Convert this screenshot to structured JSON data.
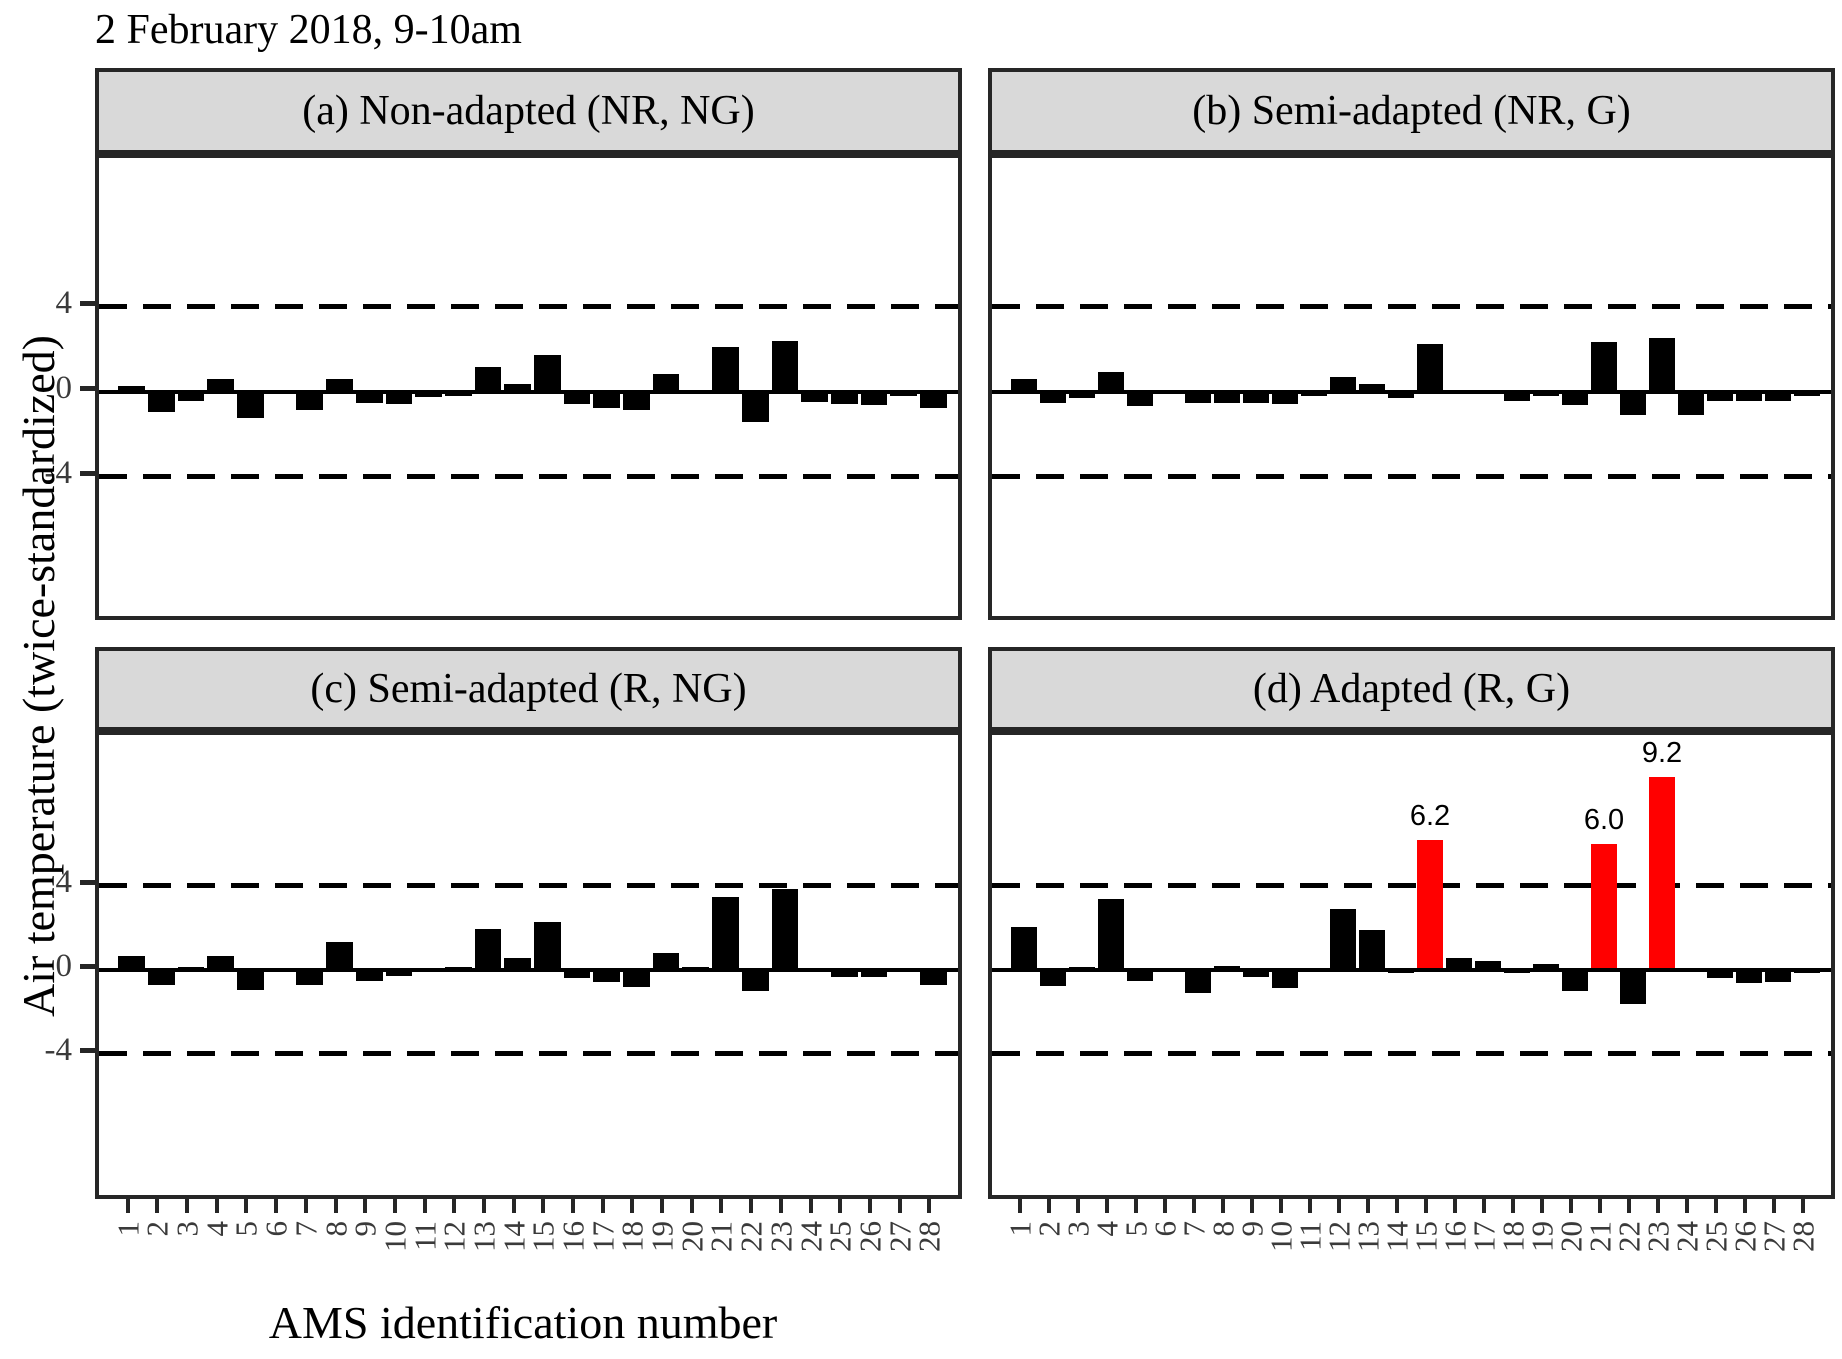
{
  "title": "2 February 2018, 9-10am",
  "axes": {
    "y_label": "Air temperature (twice-standardized)",
    "x_label": "AMS identification number",
    "y_ticks": [
      "4",
      "0",
      "-4"
    ],
    "x_ticks": [
      "1",
      "2",
      "3",
      "4",
      "5",
      "6",
      "7",
      "8",
      "9",
      "10",
      "11",
      "12",
      "13",
      "14",
      "15",
      "16",
      "17",
      "18",
      "19",
      "20",
      "21",
      "22",
      "23",
      "24",
      "25",
      "26",
      "27",
      "28"
    ]
  },
  "colors": {
    "bar": "#000000",
    "highlight": "#ff0000",
    "header_fill": "#d9d9d9",
    "panel_border": "#262626",
    "tick_text": "#3a3a3a"
  },
  "chart_data": [
    {
      "id": "a",
      "type": "bar",
      "title": "(a) Non-adapted (NR, NG)",
      "x": [
        1,
        2,
        3,
        4,
        5,
        6,
        7,
        8,
        9,
        10,
        11,
        12,
        13,
        14,
        15,
        16,
        17,
        18,
        19,
        20,
        21,
        22,
        23,
        24,
        25,
        26,
        27,
        28
      ],
      "values": [
        0.3,
        -0.95,
        -0.4,
        0.6,
        -1.2,
        -0.05,
        -0.85,
        0.6,
        -0.5,
        -0.55,
        -0.25,
        -0.2,
        1.2,
        0.4,
        1.75,
        -0.55,
        -0.75,
        -0.85,
        0.85,
        -0.05,
        2.1,
        -1.4,
        2.4,
        -0.45,
        -0.55,
        -0.6,
        -0.2,
        -0.75
      ],
      "ylim": [
        -11,
        11
      ],
      "yticks": [
        4,
        0,
        -4
      ],
      "reference_lines": {
        "dashed": [
          4,
          -4
        ],
        "solid": 0
      },
      "highlight_indices": [],
      "annotations": []
    },
    {
      "id": "b",
      "type": "bar",
      "title": "(b) Semi-adapted (NR, G)",
      "x": [
        1,
        2,
        3,
        4,
        5,
        6,
        7,
        8,
        9,
        10,
        11,
        12,
        13,
        14,
        15,
        16,
        17,
        18,
        19,
        20,
        21,
        22,
        23,
        24,
        25,
        26,
        27,
        28
      ],
      "values": [
        0.6,
        -0.5,
        -0.3,
        0.95,
        -0.65,
        -0.05,
        -0.5,
        -0.5,
        -0.5,
        -0.55,
        -0.2,
        0.7,
        0.4,
        -0.3,
        2.25,
        0.05,
        -0.05,
        -0.4,
        -0.2,
        -0.6,
        2.35,
        -1.1,
        2.55,
        -1.1,
        -0.4,
        -0.4,
        -0.4,
        -0.2
      ],
      "ylim": [
        -11,
        11
      ],
      "yticks": [
        4,
        0,
        -4
      ],
      "reference_lines": {
        "dashed": [
          4,
          -4
        ],
        "solid": 0
      },
      "highlight_indices": [],
      "annotations": []
    },
    {
      "id": "c",
      "type": "bar",
      "title": "(c) Semi-adapted (R, NG)",
      "x": [
        1,
        2,
        3,
        4,
        5,
        6,
        7,
        8,
        9,
        10,
        11,
        12,
        13,
        14,
        15,
        16,
        17,
        18,
        19,
        20,
        21,
        22,
        23,
        24,
        25,
        26,
        27,
        28
      ],
      "values": [
        0.65,
        -0.7,
        0.15,
        0.65,
        -0.95,
        -0.05,
        -0.7,
        1.35,
        -0.5,
        -0.3,
        -0.1,
        0.15,
        1.95,
        0.55,
        2.3,
        -0.4,
        -0.55,
        -0.8,
        0.8,
        0.15,
        3.5,
        -1.0,
        3.85,
        -0.05,
        -0.35,
        -0.35,
        -0.05,
        -0.7
      ],
      "ylim": [
        -11,
        11
      ],
      "yticks": [
        4,
        0,
        -4
      ],
      "reference_lines": {
        "dashed": [
          4,
          -4
        ],
        "solid": 0
      },
      "highlight_indices": [],
      "annotations": []
    },
    {
      "id": "d",
      "type": "bar",
      "title": "(d) Adapted (R, G)",
      "x": [
        1,
        2,
        3,
        4,
        5,
        6,
        7,
        8,
        9,
        10,
        11,
        12,
        13,
        14,
        15,
        16,
        17,
        18,
        19,
        20,
        21,
        22,
        23,
        24,
        25,
        26,
        27,
        28
      ],
      "values": [
        2.05,
        -0.75,
        0.15,
        3.4,
        -0.5,
        -0.05,
        -1.1,
        0.2,
        -0.35,
        -0.85,
        -0.05,
        2.9,
        1.9,
        -0.15,
        6.2,
        0.55,
        0.45,
        -0.15,
        0.3,
        -1.0,
        6.0,
        -1.6,
        9.2,
        -0.05,
        -0.4,
        -0.6,
        -0.55,
        -0.15
      ],
      "ylim": [
        -11,
        11
      ],
      "yticks": [
        4,
        0,
        -4
      ],
      "reference_lines": {
        "dashed": [
          4,
          -4
        ],
        "solid": 0
      },
      "highlight_indices": [
        15,
        21,
        23
      ],
      "annotations": [
        {
          "index": 15,
          "text": "6.2"
        },
        {
          "index": 21,
          "text": "6.0"
        },
        {
          "index": 23,
          "text": "9.2"
        }
      ]
    }
  ]
}
